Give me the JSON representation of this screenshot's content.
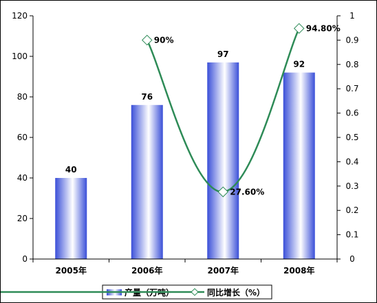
{
  "chart_data": {
    "type": "bar+line",
    "categories": [
      "2005年",
      "2006年",
      "2007年",
      "2008年"
    ],
    "series": [
      {
        "name": "产量（万吨）",
        "type": "bar",
        "axis": "left",
        "values": [
          40,
          76,
          97,
          92
        ],
        "labels": [
          "40",
          "76",
          "97",
          "92"
        ]
      },
      {
        "name": "同比增长（%）",
        "type": "line",
        "axis": "right",
        "values": [
          null,
          0.9,
          0.276,
          0.948
        ],
        "labels": [
          "",
          "90%",
          "27.60%",
          "94.80%"
        ]
      }
    ],
    "y_left": {
      "min": 0,
      "max": 120,
      "step": 20,
      "ticks": [
        "0",
        "20",
        "40",
        "60",
        "80",
        "100",
        "120"
      ]
    },
    "y_right": {
      "min": 0,
      "max": 1,
      "step": 0.1,
      "ticks": [
        "0",
        "0.1",
        "0.2",
        "0.3",
        "0.4",
        "0.5",
        "0.6",
        "0.7",
        "0.8",
        "0.9",
        "1"
      ]
    },
    "grid": false,
    "legend_position": "bottom",
    "colors": {
      "bar_dark": "#3a4fd8",
      "bar_light": "#ffffff",
      "line": "#2e8b57",
      "marker_fill": "#ffffff",
      "marker_stroke": "#2e8b57"
    }
  }
}
